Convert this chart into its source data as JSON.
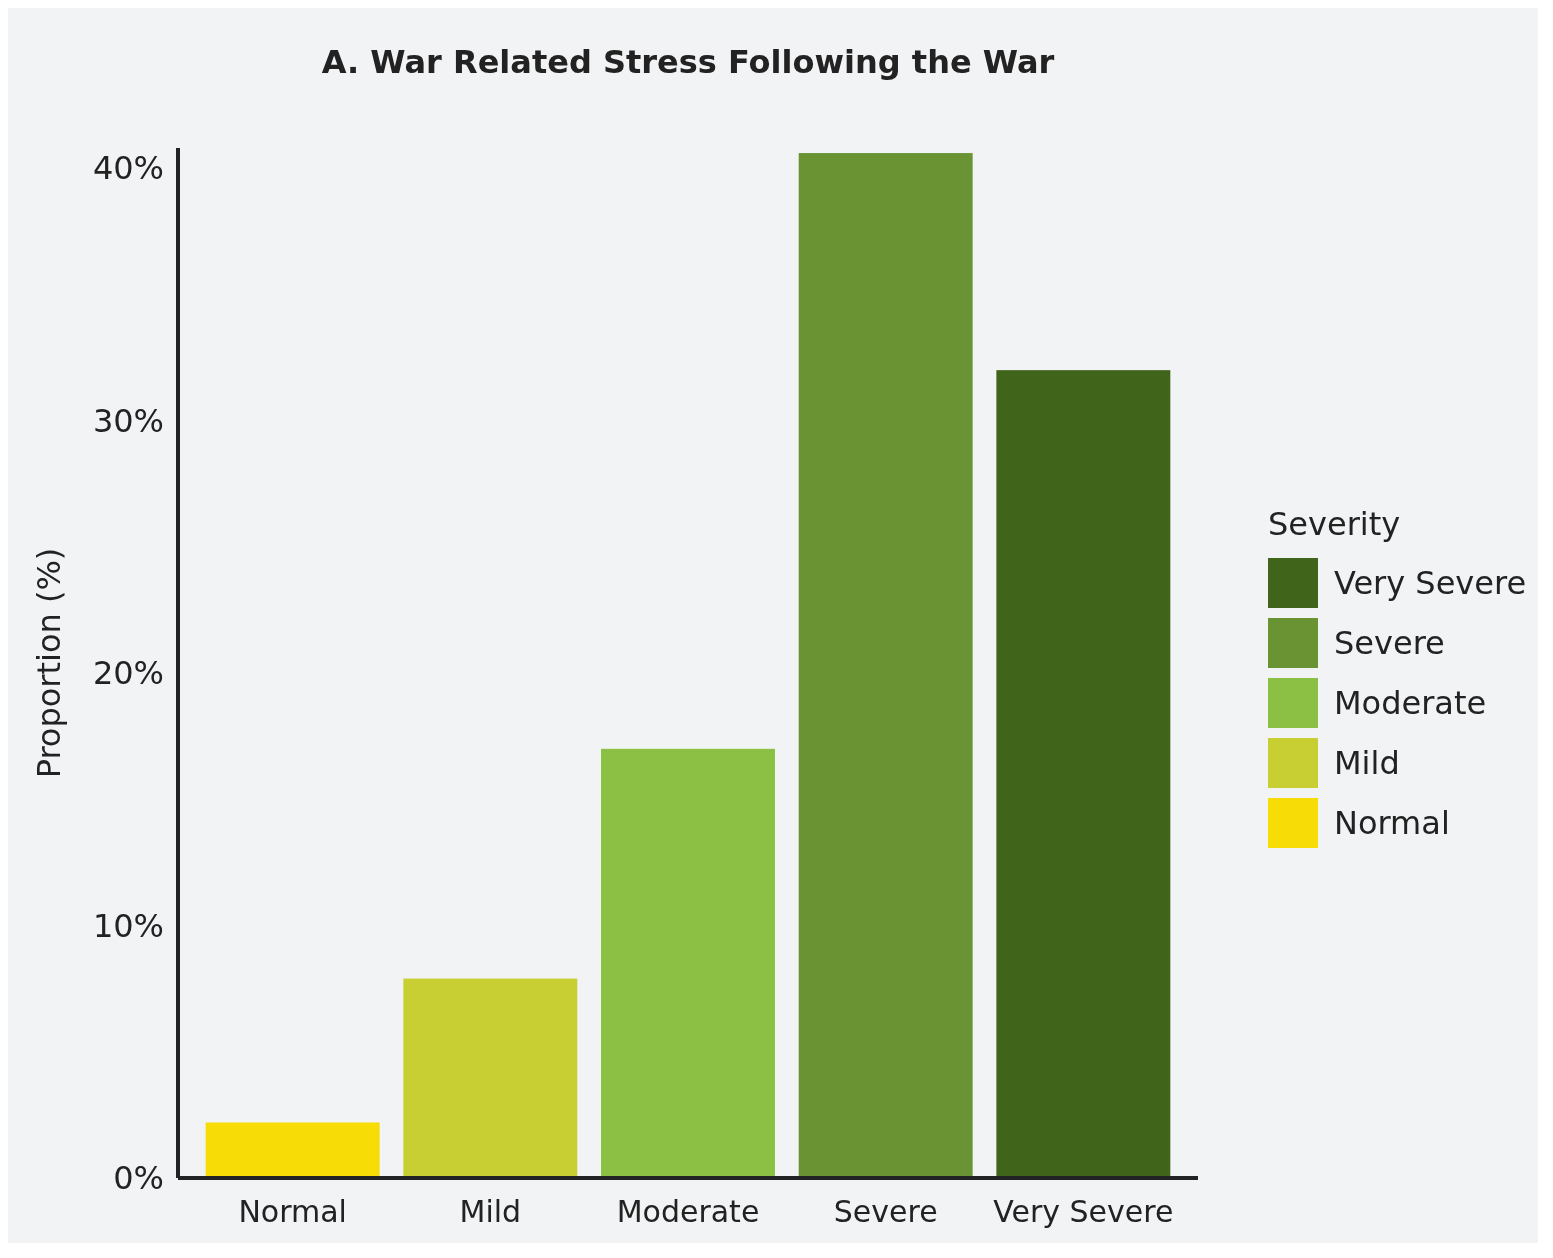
{
  "chart_data": {
    "type": "bar",
    "title": "A. War Related Stress Following the War",
    "ylabel": "Proportion (%)",
    "legend_title": "Severity",
    "categories": [
      "Normal",
      "Mild",
      "Moderate",
      "Severe",
      "Very Severe"
    ],
    "series": [
      {
        "name": "Normal",
        "color": "#f7dc05",
        "values": [
          2.2,
          null,
          null,
          null,
          null
        ]
      },
      {
        "name": "Mild",
        "color": "#c8cf32",
        "values": [
          null,
          7.9,
          null,
          null,
          null
        ]
      },
      {
        "name": "Moderate",
        "color": "#8bc045",
        "values": [
          null,
          null,
          17.0,
          null,
          null
        ]
      },
      {
        "name": "Severe",
        "color": "#6a9434",
        "values": [
          null,
          null,
          null,
          40.6,
          null
        ]
      },
      {
        "name": "Very Severe",
        "color": "#41641b",
        "values": [
          null,
          null,
          null,
          null,
          32.0
        ]
      }
    ],
    "ylim": [
      0,
      40.8
    ],
    "yticks": [
      {
        "value": 0,
        "label": "0%"
      },
      {
        "value": 10,
        "label": "10%"
      },
      {
        "value": 20,
        "label": "20%"
      },
      {
        "value": 30,
        "label": "30%"
      },
      {
        "value": 40,
        "label": "40%"
      }
    ],
    "legend": "right",
    "grid": false
  }
}
